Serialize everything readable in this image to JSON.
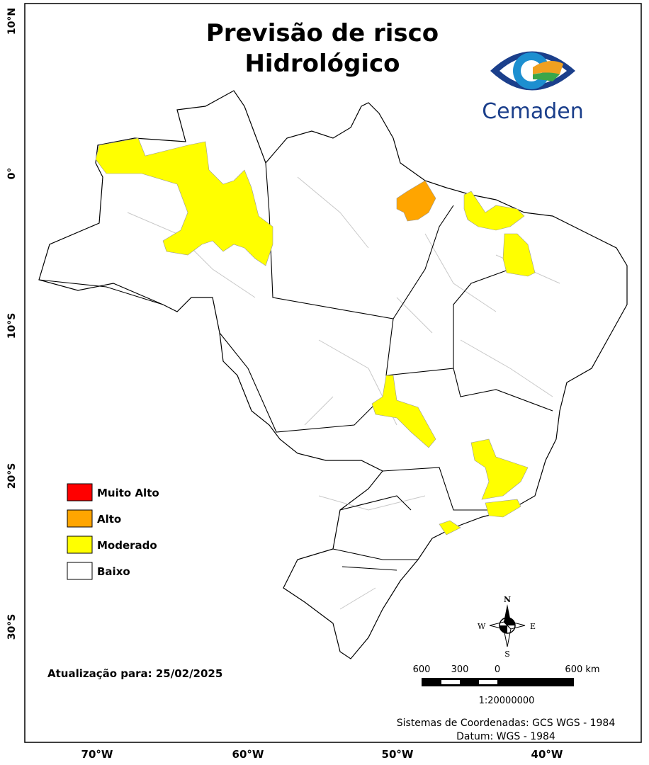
{
  "header": {
    "title_lines": [
      "Previsão de risco",
      "Hidrológico"
    ]
  },
  "logo": {
    "text": "Cemaden"
  },
  "legend": {
    "items": [
      {
        "label": "Muito Alto",
        "color": "#ff0000"
      },
      {
        "label": "Alto",
        "color": "#ffa500"
      },
      {
        "label": "Moderado",
        "color": "#ffff00"
      },
      {
        "label": "Baixo",
        "color": "#ffffff"
      }
    ]
  },
  "axes": {
    "latitude_labels": [
      "10°N",
      "0°",
      "10°S",
      "20°S",
      "30°S"
    ],
    "longitude_labels": [
      "70°W",
      "60°W",
      "50°W",
      "40°W"
    ]
  },
  "update": "Atualização para: 25/02/2025",
  "compass": {
    "n": "N",
    "s": "S",
    "e": "E",
    "w": "W"
  },
  "scale_bar": {
    "labels": [
      "600",
      "300",
      "0",
      "600 km"
    ],
    "ratio": "1:20000000"
  },
  "coordinates": [
    "Sistemas de Coordenadas: GCS WGS - 1984",
    "Datum: WGS - 1984"
  ]
}
